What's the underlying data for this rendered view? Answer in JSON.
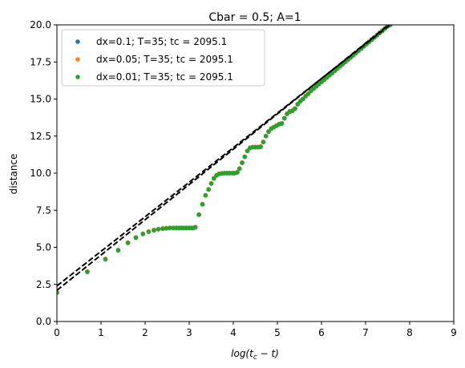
{
  "chart_data": {
    "type": "scatter",
    "title": "Cbar = 0.5; A=1",
    "xlabel_prefix": "log(t",
    "xlabel_sub": "c",
    "xlabel_suffix": " − t)",
    "ylabel": "distance",
    "xlim": [
      0,
      9
    ],
    "ylim": [
      0,
      20
    ],
    "xticks": [
      "0",
      "1",
      "2",
      "3",
      "4",
      "5",
      "6",
      "7",
      "8",
      "9"
    ],
    "yticks": [
      "0.0",
      "2.5",
      "5.0",
      "7.5",
      "10.0",
      "12.5",
      "15.0",
      "17.5",
      "20.0"
    ],
    "grid": false,
    "legend_position": "upper-left",
    "series": [
      {
        "name": "dx=0.1; T=35; tc = 2095.1",
        "color": "#1f77b4"
      },
      {
        "name": "dx=0.05; T=35; tc = 2095.1",
        "color": "#ff7f0e"
      },
      {
        "name": "dx=0.01; T=35; tc = 2095.1",
        "color": "#2ca02c"
      }
    ],
    "points": [
      [
        0.0,
        1.95
      ],
      [
        0.69,
        3.35
      ],
      [
        1.1,
        4.2
      ],
      [
        1.39,
        4.8
      ],
      [
        1.61,
        5.3
      ],
      [
        1.79,
        5.65
      ],
      [
        1.95,
        5.9
      ],
      [
        2.08,
        6.05
      ],
      [
        2.2,
        6.15
      ],
      [
        2.3,
        6.22
      ],
      [
        2.4,
        6.26
      ],
      [
        2.48,
        6.28
      ],
      [
        2.56,
        6.3
      ],
      [
        2.64,
        6.3
      ],
      [
        2.71,
        6.3
      ],
      [
        2.77,
        6.3
      ],
      [
        2.83,
        6.3
      ],
      [
        2.89,
        6.3
      ],
      [
        2.94,
        6.3
      ],
      [
        3.0,
        6.3
      ],
      [
        3.04,
        6.3
      ],
      [
        3.09,
        6.3
      ],
      [
        3.14,
        6.35
      ],
      [
        3.22,
        7.2
      ],
      [
        3.3,
        7.9
      ],
      [
        3.37,
        8.5
      ],
      [
        3.44,
        8.9
      ],
      [
        3.5,
        9.3
      ],
      [
        3.56,
        9.65
      ],
      [
        3.62,
        9.85
      ],
      [
        3.68,
        9.95
      ],
      [
        3.74,
        9.98
      ],
      [
        3.8,
        10.0
      ],
      [
        3.86,
        10.0
      ],
      [
        3.92,
        10.0
      ],
      [
        3.98,
        10.0
      ],
      [
        4.03,
        10.0
      ],
      [
        4.09,
        10.05
      ],
      [
        4.14,
        10.3
      ],
      [
        4.2,
        10.7
      ],
      [
        4.26,
        11.1
      ],
      [
        4.32,
        11.5
      ],
      [
        4.38,
        11.7
      ],
      [
        4.44,
        11.75
      ],
      [
        4.5,
        11.75
      ],
      [
        4.56,
        11.75
      ],
      [
        4.62,
        11.78
      ],
      [
        4.68,
        12.1
      ],
      [
        4.74,
        12.5
      ],
      [
        4.8,
        12.8
      ],
      [
        4.86,
        13.0
      ],
      [
        4.92,
        13.1
      ],
      [
        4.98,
        13.2
      ],
      [
        5.04,
        13.3
      ],
      [
        5.1,
        13.35
      ],
      [
        5.16,
        13.7
      ],
      [
        5.22,
        14.0
      ],
      [
        5.28,
        14.15
      ],
      [
        5.34,
        14.2
      ],
      [
        5.4,
        14.35
      ],
      [
        5.46,
        14.65
      ],
      [
        5.52,
        14.85
      ],
      [
        5.58,
        15.0
      ],
      [
        5.64,
        15.2
      ],
      [
        5.7,
        15.35
      ],
      [
        5.76,
        15.55
      ],
      [
        5.82,
        15.7
      ],
      [
        5.88,
        15.85
      ],
      [
        5.94,
        16.0
      ],
      [
        6.0,
        16.15
      ],
      [
        6.06,
        16.3
      ],
      [
        6.12,
        16.45
      ],
      [
        6.18,
        16.6
      ],
      [
        6.24,
        16.75
      ],
      [
        6.3,
        16.9
      ],
      [
        6.36,
        17.05
      ],
      [
        6.42,
        17.2
      ],
      [
        6.48,
        17.35
      ],
      [
        6.54,
        17.5
      ],
      [
        6.6,
        17.65
      ],
      [
        6.66,
        17.8
      ],
      [
        6.72,
        17.95
      ],
      [
        6.78,
        18.1
      ],
      [
        6.84,
        18.25
      ],
      [
        6.9,
        18.4
      ],
      [
        6.96,
        18.55
      ],
      [
        7.02,
        18.7
      ],
      [
        7.08,
        18.85
      ],
      [
        7.14,
        19.0
      ],
      [
        7.2,
        19.15
      ],
      [
        7.26,
        19.3
      ],
      [
        7.32,
        19.45
      ],
      [
        7.38,
        19.6
      ],
      [
        7.44,
        19.75
      ],
      [
        7.5,
        19.9
      ],
      [
        7.56,
        20.0
      ]
    ],
    "fit_lines": [
      {
        "intercept": 2.1,
        "slope": 2.38
      },
      {
        "intercept": 2.4,
        "slope": 2.33
      }
    ],
    "fit_line_color": "#000000"
  }
}
